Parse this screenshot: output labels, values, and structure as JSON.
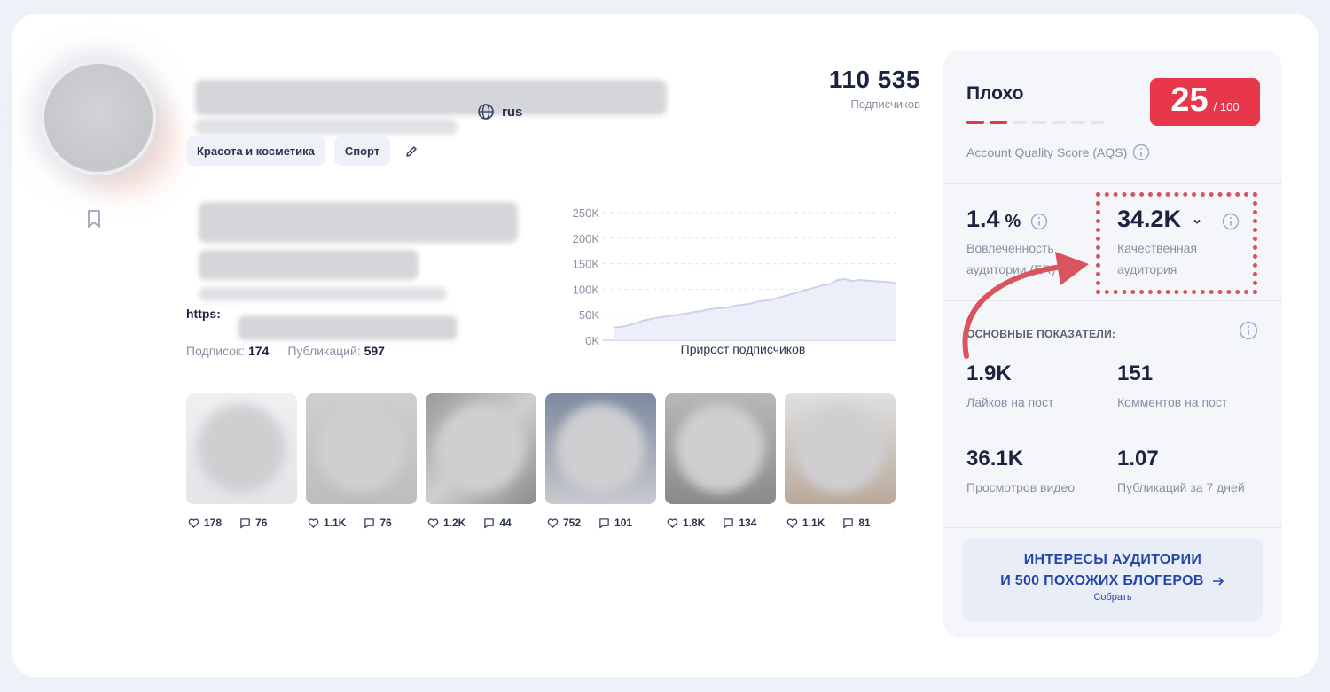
{
  "profile": {
    "language": "rus",
    "tags": [
      "Красота и косметика",
      "Спорт"
    ],
    "followers_count": "110 535",
    "followers_label": "Подписчиков",
    "link_prefix": "https:",
    "following_label": "Подписок:",
    "following_count": "174",
    "posts_label": "Публикаций:",
    "posts_count": "597"
  },
  "chart_data": {
    "type": "area",
    "title": "Прирост подписчиков",
    "y_ticks": [
      "250K",
      "200K",
      "150K",
      "100K",
      "50K",
      "0K"
    ],
    "ylim": [
      0,
      250000
    ],
    "x": [
      0,
      1,
      2,
      3,
      4,
      5,
      6,
      7,
      8,
      9,
      10,
      11,
      12,
      13,
      14,
      15,
      16,
      17,
      18,
      19,
      20,
      21,
      22,
      23,
      24,
      25,
      26,
      27,
      28,
      29,
      30,
      31,
      32,
      33,
      34,
      35,
      36,
      37,
      38,
      39
    ],
    "values": [
      25000,
      26000,
      29000,
      33000,
      38000,
      41000,
      44000,
      46000,
      48000,
      50000,
      52000,
      55000,
      57000,
      60000,
      62000,
      63000,
      65000,
      68000,
      70000,
      72000,
      76000,
      78000,
      80000,
      84000,
      88000,
      92000,
      96000,
      100000,
      104000,
      108000,
      110000,
      118000,
      120000,
      116000,
      118000,
      117000,
      116000,
      115000,
      114000,
      112000
    ],
    "grid": true
  },
  "posts": [
    {
      "likes": "178",
      "comments": "76"
    },
    {
      "likes": "1.1K",
      "comments": "76"
    },
    {
      "likes": "1.2K",
      "comments": "44"
    },
    {
      "likes": "752",
      "comments": "101"
    },
    {
      "likes": "1.8K",
      "comments": "134"
    },
    {
      "likes": "1.1K",
      "comments": "81"
    }
  ],
  "panel": {
    "rating_word": "Плохо",
    "score": "25",
    "score_max": "/ 100",
    "score_fraction": 0.25,
    "aqs_label": "Account Quality Score (AQS)",
    "engagement_value": "1.4",
    "engagement_unit": "%",
    "engagement_label_1": "Вовлеченность",
    "engagement_label_2": "аудитории (ER)",
    "quality_value": "34.2K",
    "quality_label_1": "Качественная",
    "quality_label_2": "аудитория",
    "section_caption": "ОСНОВНЫЕ ПОКАЗАТЕЛИ:",
    "likes_per_post": "1.9K",
    "likes_per_post_label": "Лайков на пост",
    "comments_per_post": "151",
    "comments_per_post_label": "Комментов на пост",
    "video_views": "36.1K",
    "video_views_label": "Просмотров видео",
    "posts_7d": "1.07",
    "posts_7d_label": "Публикаций за 7 дней",
    "cta_line_1": "ИНТЕРЕСЫ АУДИТОРИИ",
    "cta_line_2": "И 500 ПОХОЖИХ БЛОГЕРОВ",
    "cta_sub": "Собрать"
  },
  "colors": {
    "accent_red": "#e8374a",
    "accent_blue": "#2446a8",
    "annotation_red": "#d9545c"
  }
}
